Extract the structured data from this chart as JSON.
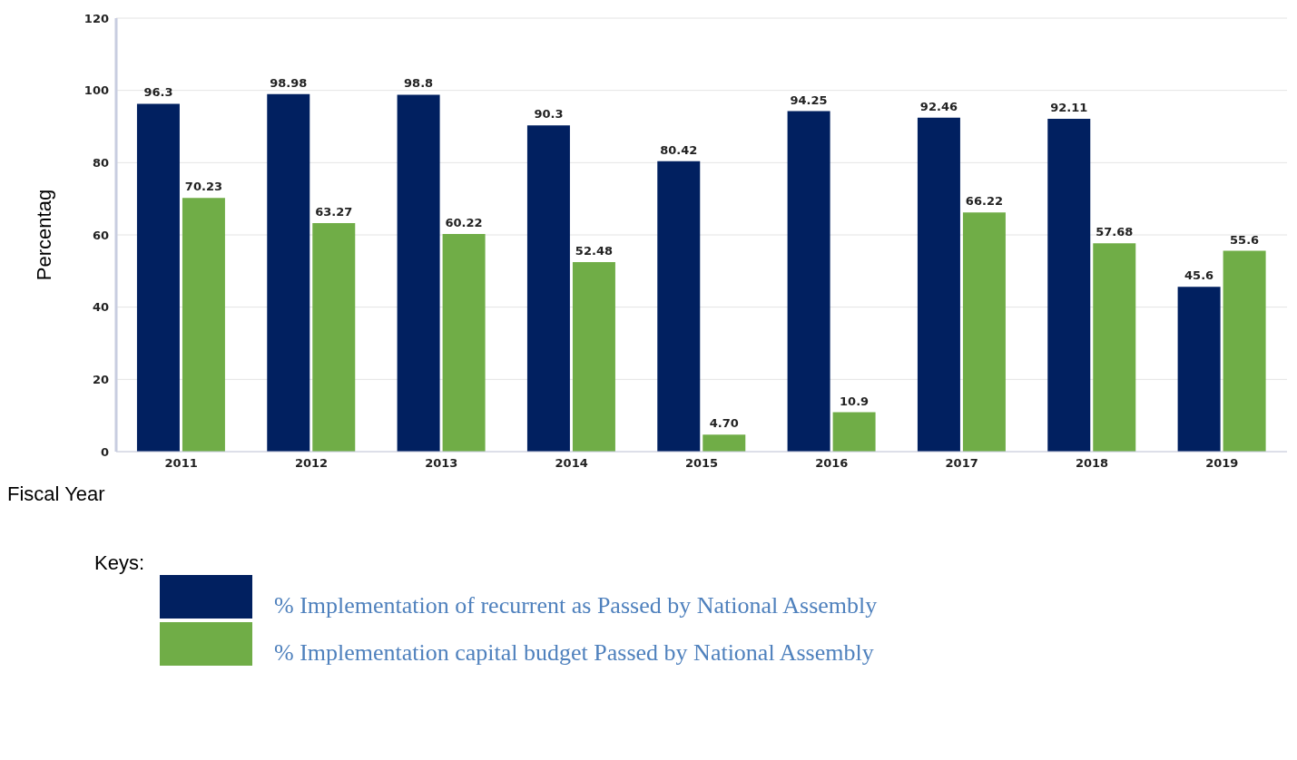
{
  "chart_data": {
    "type": "bar",
    "xlabel": "Fiscal Year",
    "ylabel": "Percentag",
    "legend_title": "Keys:",
    "categories": [
      "2011",
      "2012",
      "2013",
      "2014",
      "2015",
      "2016",
      "2017",
      "2018",
      "2019"
    ],
    "series": [
      {
        "name": "% Implementation of recurrent as Passed by National Assembly",
        "color": "#012060",
        "values": [
          96.3,
          98.98,
          98.8,
          90.3,
          80.42,
          94.25,
          92.46,
          92.11,
          45.6
        ],
        "value_labels": [
          "96.3",
          "98.98",
          "98.8",
          "90.3",
          "80.42",
          "94.25",
          "92.46",
          "92.11",
          "45.6"
        ]
      },
      {
        "name": "% Implementation capital budget Passed by National Assembly",
        "color": "#70ad47",
        "values": [
          70.23,
          63.27,
          60.22,
          52.48,
          4.7,
          10.9,
          66.22,
          57.68,
          55.6
        ],
        "value_labels": [
          "70.23",
          "63.27",
          "60.22",
          "52.48",
          "4.70",
          "10.9",
          "66.22",
          "57.68",
          "55.6"
        ]
      }
    ],
    "ylim": [
      0,
      120
    ],
    "yticks": [
      0,
      20,
      40,
      60,
      80,
      100,
      120
    ],
    "grid": "y",
    "legend": "bottom"
  }
}
